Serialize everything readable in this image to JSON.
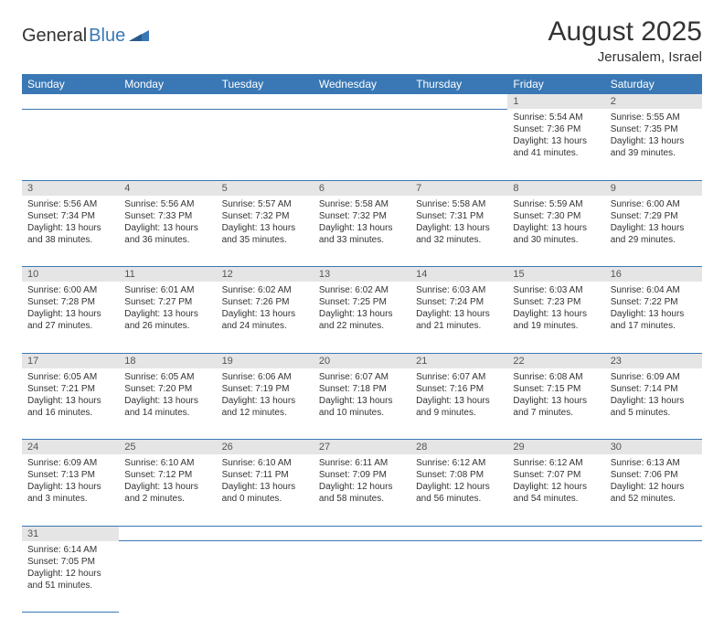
{
  "logo": {
    "text1": "General",
    "text2": "Blue",
    "iconColor": "#3a78b5"
  },
  "title": {
    "month": "August 2025",
    "location": "Jerusalem, Israel"
  },
  "colors": {
    "headerBg": "#3a78b5",
    "headerText": "#ffffff",
    "dayNumBg": "#e5e5e5",
    "borderColor": "#3a78b5"
  },
  "dayNames": [
    "Sunday",
    "Monday",
    "Tuesday",
    "Wednesday",
    "Thursday",
    "Friday",
    "Saturday"
  ],
  "weeks": [
    [
      {
        "n": "",
        "empty": true
      },
      {
        "n": "",
        "empty": true
      },
      {
        "n": "",
        "empty": true
      },
      {
        "n": "",
        "empty": true
      },
      {
        "n": "",
        "empty": true
      },
      {
        "n": "1",
        "sunrise": "Sunrise: 5:54 AM",
        "sunset": "Sunset: 7:36 PM",
        "daylight": "Daylight: 13 hours and 41 minutes."
      },
      {
        "n": "2",
        "sunrise": "Sunrise: 5:55 AM",
        "sunset": "Sunset: 7:35 PM",
        "daylight": "Daylight: 13 hours and 39 minutes."
      }
    ],
    [
      {
        "n": "3",
        "sunrise": "Sunrise: 5:56 AM",
        "sunset": "Sunset: 7:34 PM",
        "daylight": "Daylight: 13 hours and 38 minutes."
      },
      {
        "n": "4",
        "sunrise": "Sunrise: 5:56 AM",
        "sunset": "Sunset: 7:33 PM",
        "daylight": "Daylight: 13 hours and 36 minutes."
      },
      {
        "n": "5",
        "sunrise": "Sunrise: 5:57 AM",
        "sunset": "Sunset: 7:32 PM",
        "daylight": "Daylight: 13 hours and 35 minutes."
      },
      {
        "n": "6",
        "sunrise": "Sunrise: 5:58 AM",
        "sunset": "Sunset: 7:32 PM",
        "daylight": "Daylight: 13 hours and 33 minutes."
      },
      {
        "n": "7",
        "sunrise": "Sunrise: 5:58 AM",
        "sunset": "Sunset: 7:31 PM",
        "daylight": "Daylight: 13 hours and 32 minutes."
      },
      {
        "n": "8",
        "sunrise": "Sunrise: 5:59 AM",
        "sunset": "Sunset: 7:30 PM",
        "daylight": "Daylight: 13 hours and 30 minutes."
      },
      {
        "n": "9",
        "sunrise": "Sunrise: 6:00 AM",
        "sunset": "Sunset: 7:29 PM",
        "daylight": "Daylight: 13 hours and 29 minutes."
      }
    ],
    [
      {
        "n": "10",
        "sunrise": "Sunrise: 6:00 AM",
        "sunset": "Sunset: 7:28 PM",
        "daylight": "Daylight: 13 hours and 27 minutes."
      },
      {
        "n": "11",
        "sunrise": "Sunrise: 6:01 AM",
        "sunset": "Sunset: 7:27 PM",
        "daylight": "Daylight: 13 hours and 26 minutes."
      },
      {
        "n": "12",
        "sunrise": "Sunrise: 6:02 AM",
        "sunset": "Sunset: 7:26 PM",
        "daylight": "Daylight: 13 hours and 24 minutes."
      },
      {
        "n": "13",
        "sunrise": "Sunrise: 6:02 AM",
        "sunset": "Sunset: 7:25 PM",
        "daylight": "Daylight: 13 hours and 22 minutes."
      },
      {
        "n": "14",
        "sunrise": "Sunrise: 6:03 AM",
        "sunset": "Sunset: 7:24 PM",
        "daylight": "Daylight: 13 hours and 21 minutes."
      },
      {
        "n": "15",
        "sunrise": "Sunrise: 6:03 AM",
        "sunset": "Sunset: 7:23 PM",
        "daylight": "Daylight: 13 hours and 19 minutes."
      },
      {
        "n": "16",
        "sunrise": "Sunrise: 6:04 AM",
        "sunset": "Sunset: 7:22 PM",
        "daylight": "Daylight: 13 hours and 17 minutes."
      }
    ],
    [
      {
        "n": "17",
        "sunrise": "Sunrise: 6:05 AM",
        "sunset": "Sunset: 7:21 PM",
        "daylight": "Daylight: 13 hours and 16 minutes."
      },
      {
        "n": "18",
        "sunrise": "Sunrise: 6:05 AM",
        "sunset": "Sunset: 7:20 PM",
        "daylight": "Daylight: 13 hours and 14 minutes."
      },
      {
        "n": "19",
        "sunrise": "Sunrise: 6:06 AM",
        "sunset": "Sunset: 7:19 PM",
        "daylight": "Daylight: 13 hours and 12 minutes."
      },
      {
        "n": "20",
        "sunrise": "Sunrise: 6:07 AM",
        "sunset": "Sunset: 7:18 PM",
        "daylight": "Daylight: 13 hours and 10 minutes."
      },
      {
        "n": "21",
        "sunrise": "Sunrise: 6:07 AM",
        "sunset": "Sunset: 7:16 PM",
        "daylight": "Daylight: 13 hours and 9 minutes."
      },
      {
        "n": "22",
        "sunrise": "Sunrise: 6:08 AM",
        "sunset": "Sunset: 7:15 PM",
        "daylight": "Daylight: 13 hours and 7 minutes."
      },
      {
        "n": "23",
        "sunrise": "Sunrise: 6:09 AM",
        "sunset": "Sunset: 7:14 PM",
        "daylight": "Daylight: 13 hours and 5 minutes."
      }
    ],
    [
      {
        "n": "24",
        "sunrise": "Sunrise: 6:09 AM",
        "sunset": "Sunset: 7:13 PM",
        "daylight": "Daylight: 13 hours and 3 minutes."
      },
      {
        "n": "25",
        "sunrise": "Sunrise: 6:10 AM",
        "sunset": "Sunset: 7:12 PM",
        "daylight": "Daylight: 13 hours and 2 minutes."
      },
      {
        "n": "26",
        "sunrise": "Sunrise: 6:10 AM",
        "sunset": "Sunset: 7:11 PM",
        "daylight": "Daylight: 13 hours and 0 minutes."
      },
      {
        "n": "27",
        "sunrise": "Sunrise: 6:11 AM",
        "sunset": "Sunset: 7:09 PM",
        "daylight": "Daylight: 12 hours and 58 minutes."
      },
      {
        "n": "28",
        "sunrise": "Sunrise: 6:12 AM",
        "sunset": "Sunset: 7:08 PM",
        "daylight": "Daylight: 12 hours and 56 minutes."
      },
      {
        "n": "29",
        "sunrise": "Sunrise: 6:12 AM",
        "sunset": "Sunset: 7:07 PM",
        "daylight": "Daylight: 12 hours and 54 minutes."
      },
      {
        "n": "30",
        "sunrise": "Sunrise: 6:13 AM",
        "sunset": "Sunset: 7:06 PM",
        "daylight": "Daylight: 12 hours and 52 minutes."
      }
    ],
    [
      {
        "n": "31",
        "sunrise": "Sunrise: 6:14 AM",
        "sunset": "Sunset: 7:05 PM",
        "daylight": "Daylight: 12 hours and 51 minutes."
      },
      {
        "n": "",
        "empty": true
      },
      {
        "n": "",
        "empty": true
      },
      {
        "n": "",
        "empty": true
      },
      {
        "n": "",
        "empty": true
      },
      {
        "n": "",
        "empty": true
      },
      {
        "n": "",
        "empty": true
      }
    ]
  ]
}
